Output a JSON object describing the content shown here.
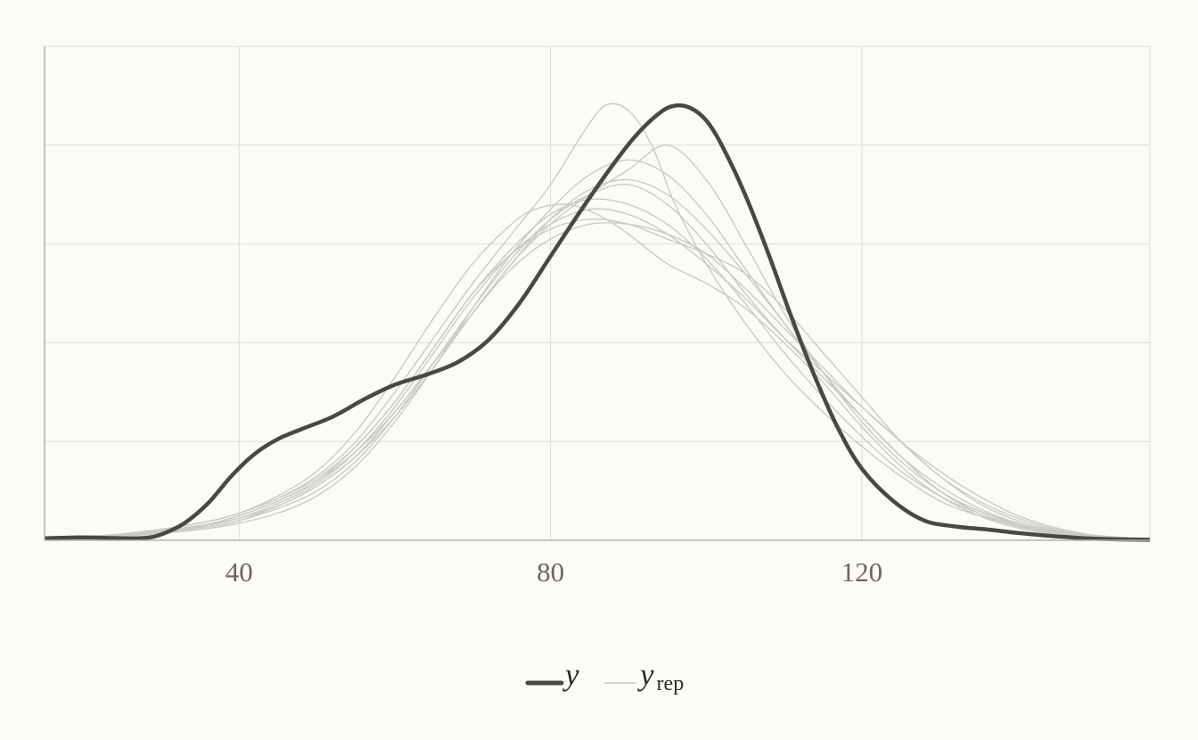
{
  "chart_data": {
    "type": "line",
    "title": "",
    "xlabel": "",
    "ylabel": "",
    "xlim": [
      15,
      157
    ],
    "ylim": [
      0,
      1.0
    ],
    "x_ticks": [
      40,
      80,
      120
    ],
    "y_gridlines": [
      0.2,
      0.4,
      0.6,
      0.8
    ],
    "grid": true,
    "legend_position": "bottom-center",
    "colors": {
      "observed": "#4a4846",
      "replicated": "#cccac6",
      "grid": "#dedcd8",
      "axis": "#b3b1ad",
      "background": "#fcfbf7"
    },
    "legend": {
      "observed_label": "y",
      "replicated_label": "y",
      "replicated_subscript": "rep"
    },
    "observed": {
      "name": "y",
      "x": [
        15,
        20,
        25,
        28,
        30,
        33,
        36,
        39,
        42,
        45,
        48,
        52,
        56,
        60,
        64,
        68,
        72,
        76,
        80,
        84,
        88,
        91,
        94,
        96,
        98,
        100,
        102,
        105,
        108,
        111,
        114,
        117,
        120,
        124,
        128,
        132,
        136,
        140,
        145,
        150,
        157
      ],
      "y": [
        0.004,
        0.006,
        0.004,
        0.005,
        0.012,
        0.035,
        0.075,
        0.13,
        0.175,
        0.205,
        0.225,
        0.25,
        0.285,
        0.315,
        0.335,
        0.36,
        0.405,
        0.48,
        0.575,
        0.67,
        0.76,
        0.82,
        0.865,
        0.88,
        0.875,
        0.85,
        0.8,
        0.7,
        0.58,
        0.45,
        0.33,
        0.225,
        0.145,
        0.08,
        0.04,
        0.028,
        0.022,
        0.015,
        0.008,
        0.003,
        0.001
      ]
    },
    "replicates": [
      {
        "x": [
          15,
          25,
          35,
          40,
          45,
          50,
          55,
          60,
          65,
          70,
          75,
          80,
          84,
          87,
          90,
          93,
          96,
          100,
          105,
          110,
          115,
          120,
          125,
          130,
          135,
          140,
          145,
          150,
          157
        ],
        "y": [
          0.004,
          0.012,
          0.035,
          0.055,
          0.085,
          0.13,
          0.2,
          0.3,
          0.41,
          0.52,
          0.62,
          0.72,
          0.82,
          0.88,
          0.87,
          0.8,
          0.68,
          0.56,
          0.44,
          0.34,
          0.26,
          0.19,
          0.13,
          0.08,
          0.05,
          0.03,
          0.015,
          0.006,
          0.002
        ]
      },
      {
        "x": [
          15,
          25,
          35,
          40,
          45,
          50,
          55,
          60,
          65,
          70,
          75,
          80,
          85,
          90,
          95,
          100,
          105,
          110,
          115,
          120,
          125,
          130,
          135,
          140,
          145,
          150,
          157
        ],
        "y": [
          0.003,
          0.01,
          0.03,
          0.045,
          0.07,
          0.11,
          0.17,
          0.26,
          0.36,
          0.46,
          0.56,
          0.64,
          0.7,
          0.75,
          0.8,
          0.73,
          0.6,
          0.46,
          0.34,
          0.24,
          0.16,
          0.1,
          0.06,
          0.035,
          0.018,
          0.008,
          0.002
        ]
      },
      {
        "x": [
          15,
          25,
          35,
          40,
          45,
          50,
          55,
          60,
          65,
          70,
          75,
          78,
          82,
          86,
          90,
          95,
          100,
          105,
          110,
          115,
          120,
          125,
          130,
          135,
          140,
          145,
          150,
          157
        ],
        "y": [
          0.004,
          0.012,
          0.035,
          0.055,
          0.09,
          0.14,
          0.22,
          0.33,
          0.45,
          0.56,
          0.64,
          0.67,
          0.68,
          0.66,
          0.62,
          0.56,
          0.52,
          0.47,
          0.4,
          0.32,
          0.23,
          0.15,
          0.09,
          0.05,
          0.025,
          0.012,
          0.005,
          0.001
        ]
      },
      {
        "x": [
          15,
          25,
          35,
          40,
          45,
          50,
          55,
          60,
          65,
          70,
          75,
          80,
          85,
          90,
          95,
          100,
          105,
          110,
          115,
          120,
          125,
          130,
          135,
          140,
          145,
          150,
          157
        ],
        "y": [
          0.003,
          0.01,
          0.03,
          0.05,
          0.08,
          0.12,
          0.19,
          0.28,
          0.39,
          0.5,
          0.59,
          0.66,
          0.69,
          0.68,
          0.64,
          0.57,
          0.48,
          0.38,
          0.29,
          0.21,
          0.14,
          0.09,
          0.055,
          0.03,
          0.015,
          0.006,
          0.002
        ]
      },
      {
        "x": [
          15,
          25,
          35,
          40,
          45,
          50,
          55,
          60,
          65,
          70,
          75,
          80,
          85,
          90,
          95,
          100,
          105,
          110,
          115,
          120,
          125,
          130,
          135,
          140,
          145,
          150,
          157
        ],
        "y": [
          0.003,
          0.008,
          0.025,
          0.04,
          0.065,
          0.1,
          0.16,
          0.25,
          0.36,
          0.47,
          0.57,
          0.65,
          0.7,
          0.72,
          0.68,
          0.6,
          0.5,
          0.41,
          0.33,
          0.25,
          0.17,
          0.1,
          0.06,
          0.032,
          0.016,
          0.007,
          0.002
        ]
      },
      {
        "x": [
          15,
          25,
          35,
          40,
          45,
          50,
          55,
          60,
          65,
          70,
          75,
          80,
          85,
          90,
          95,
          100,
          105,
          110,
          115,
          120,
          125,
          130,
          135,
          140,
          145,
          150,
          157
        ],
        "y": [
          0.003,
          0.01,
          0.028,
          0.045,
          0.075,
          0.115,
          0.18,
          0.27,
          0.38,
          0.49,
          0.58,
          0.64,
          0.67,
          0.66,
          0.62,
          0.56,
          0.49,
          0.41,
          0.34,
          0.27,
          0.2,
          0.13,
          0.08,
          0.045,
          0.022,
          0.009,
          0.003
        ]
      },
      {
        "x": [
          15,
          25,
          35,
          40,
          45,
          50,
          55,
          60,
          65,
          70,
          75,
          80,
          85,
          90,
          95,
          100,
          105,
          110,
          115,
          120,
          125,
          130,
          135,
          140,
          145,
          150,
          157
        ],
        "y": [
          0.004,
          0.013,
          0.035,
          0.055,
          0.085,
          0.125,
          0.19,
          0.28,
          0.39,
          0.5,
          0.58,
          0.63,
          0.65,
          0.64,
          0.61,
          0.58,
          0.54,
          0.47,
          0.38,
          0.29,
          0.2,
          0.13,
          0.075,
          0.04,
          0.02,
          0.008,
          0.002
        ]
      },
      {
        "x": [
          15,
          25,
          35,
          40,
          45,
          50,
          55,
          60,
          65,
          70,
          75,
          80,
          85,
          90,
          95,
          100,
          105,
          110,
          115,
          120,
          125,
          130,
          135,
          140,
          145,
          150,
          157
        ],
        "y": [
          0.003,
          0.009,
          0.025,
          0.04,
          0.07,
          0.11,
          0.17,
          0.25,
          0.35,
          0.46,
          0.56,
          0.65,
          0.71,
          0.73,
          0.7,
          0.63,
          0.54,
          0.44,
          0.34,
          0.25,
          0.17,
          0.11,
          0.065,
          0.035,
          0.017,
          0.007,
          0.002
        ]
      },
      {
        "x": [
          15,
          25,
          35,
          40,
          45,
          50,
          55,
          60,
          65,
          70,
          75,
          80,
          85,
          90,
          95,
          100,
          105,
          110,
          115,
          120,
          125,
          130,
          135,
          140,
          145,
          150,
          157
        ],
        "y": [
          0.004,
          0.011,
          0.03,
          0.05,
          0.08,
          0.12,
          0.18,
          0.26,
          0.36,
          0.46,
          0.55,
          0.61,
          0.64,
          0.64,
          0.62,
          0.58,
          0.51,
          0.43,
          0.35,
          0.27,
          0.2,
          0.14,
          0.09,
          0.05,
          0.025,
          0.01,
          0.003
        ]
      },
      {
        "x": [
          15,
          25,
          35,
          40,
          45,
          50,
          55,
          60,
          65,
          70,
          75,
          80,
          85,
          90,
          95,
          100,
          105,
          110,
          115,
          120,
          125,
          130,
          135,
          140,
          145,
          150,
          157
        ],
        "y": [
          0.003,
          0.008,
          0.022,
          0.035,
          0.055,
          0.09,
          0.15,
          0.24,
          0.35,
          0.47,
          0.58,
          0.67,
          0.74,
          0.77,
          0.74,
          0.66,
          0.55,
          0.44,
          0.34,
          0.25,
          0.17,
          0.1,
          0.055,
          0.028,
          0.013,
          0.005,
          0.001
        ]
      }
    ]
  }
}
